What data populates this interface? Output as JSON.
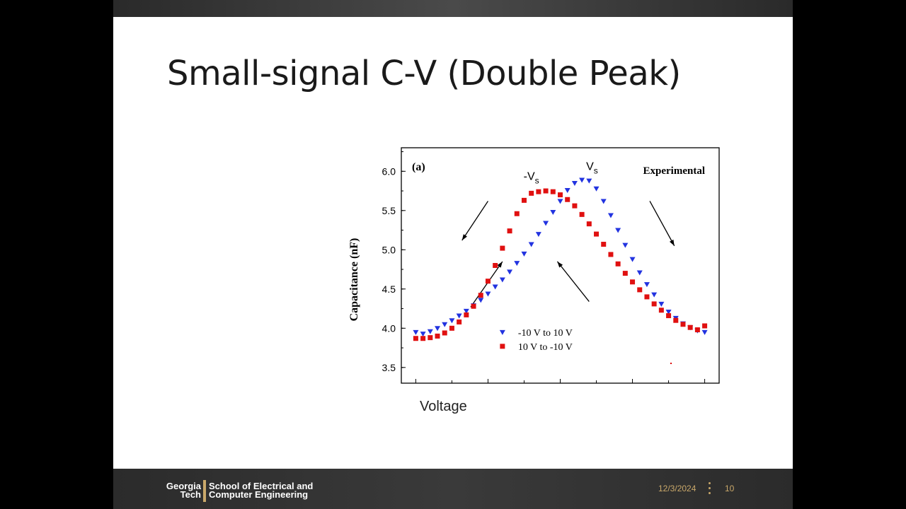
{
  "slide": {
    "title": "Small-signal C-V (Double Peak)",
    "x_caption": "Voltage"
  },
  "footer": {
    "logo_georgia_tech": "Georgia Tech",
    "logo_school": "School of Electrical and Computer Engineering",
    "date": "12/3/2024",
    "page_number": "10"
  },
  "colors": {
    "series_up": "#2233e0",
    "series_down": "#e01010",
    "accent": "#c9a86a"
  },
  "chart_data": {
    "type": "scatter",
    "panel_label": "(a)",
    "annotation": "Experimental",
    "ylabel": "Capacitance (nF)",
    "ylim": [
      3.3,
      6.3
    ],
    "yticks": [
      3.5,
      4.0,
      4.5,
      5.0,
      5.5,
      6.0
    ],
    "ytick_labels": [
      "3.5",
      "4.0",
      "4.5",
      "5.0",
      "5.5",
      "6.0"
    ],
    "xlim": [
      -11,
      11
    ],
    "x_axis_tick_labels_shown": false,
    "peak_labels": [
      {
        "text": "-V",
        "sub": "s",
        "x": -2.0,
        "y": 5.78
      },
      {
        "text": "V",
        "sub": "s",
        "x": 2.2,
        "y": 5.91
      }
    ],
    "series": [
      {
        "name": "-10 V to 10 V",
        "marker": "triangle-down",
        "color": "#2233e0",
        "x": [
          -10,
          -9.5,
          -9,
          -8.5,
          -8,
          -7.5,
          -7,
          -6.5,
          -6,
          -5.5,
          -5,
          -4.5,
          -4,
          -3.5,
          -3,
          -2.5,
          -2,
          -1.5,
          -1,
          -0.5,
          0,
          0.5,
          1,
          1.5,
          2,
          2.5,
          3,
          3.5,
          4,
          4.5,
          5,
          5.5,
          6,
          6.5,
          7,
          7.5,
          8,
          8.5,
          9,
          9.5,
          10
        ],
        "y": [
          3.95,
          3.93,
          3.96,
          4.0,
          4.05,
          4.1,
          4.16,
          4.22,
          4.29,
          4.36,
          4.44,
          4.53,
          4.62,
          4.72,
          4.83,
          4.95,
          5.07,
          5.2,
          5.34,
          5.48,
          5.62,
          5.76,
          5.85,
          5.89,
          5.88,
          5.78,
          5.62,
          5.44,
          5.25,
          5.06,
          4.88,
          4.71,
          4.56,
          4.43,
          4.31,
          4.21,
          4.13,
          4.06,
          4.01,
          3.97,
          3.95
        ]
      },
      {
        "name": "10 V to -10 V",
        "marker": "square",
        "color": "#e01010",
        "x": [
          10,
          9.5,
          9,
          8.5,
          8,
          7.5,
          7,
          6.5,
          6,
          5.5,
          5,
          4.5,
          4,
          3.5,
          3,
          2.5,
          2,
          1.5,
          1,
          0.5,
          0,
          -0.5,
          -1,
          -1.5,
          -2,
          -2.5,
          -3,
          -3.5,
          -4,
          -4.5,
          -5,
          -5.5,
          -6,
          -6.5,
          -7,
          -7.5,
          -8,
          -8.5,
          -9,
          -9.5,
          -10
        ],
        "y": [
          4.03,
          3.98,
          4.01,
          4.05,
          4.1,
          4.16,
          4.23,
          4.31,
          4.4,
          4.49,
          4.59,
          4.7,
          4.82,
          4.94,
          5.07,
          5.2,
          5.33,
          5.45,
          5.56,
          5.64,
          5.7,
          5.74,
          5.75,
          5.74,
          5.72,
          5.63,
          5.46,
          5.24,
          5.02,
          4.8,
          4.6,
          4.42,
          4.28,
          4.17,
          4.08,
          4.0,
          3.94,
          3.9,
          3.88,
          3.87,
          3.87
        ]
      }
    ],
    "legend": {
      "position": "bottom-center"
    },
    "arrows": [
      {
        "from": [
          -5.0,
          5.62
        ],
        "to": [
          -6.8,
          5.12
        ]
      },
      {
        "from": [
          -6.2,
          4.27
        ],
        "to": [
          -4.0,
          4.85
        ]
      },
      {
        "from": [
          2.0,
          4.34
        ],
        "to": [
          -0.2,
          4.85
        ]
      },
      {
        "from": [
          6.2,
          5.62
        ],
        "to": [
          7.9,
          5.05
        ]
      }
    ]
  }
}
